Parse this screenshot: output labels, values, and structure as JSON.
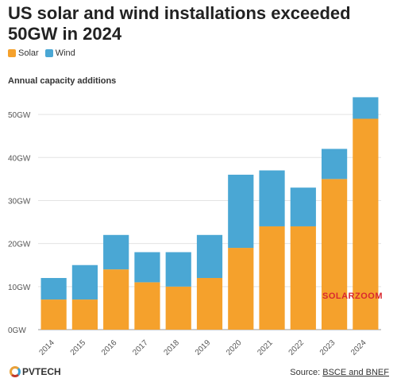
{
  "header": {
    "title": "US solar and wind installations exceeded 50GW in 2024",
    "subtitle": "Annual capacity additions"
  },
  "legend": {
    "items": [
      {
        "label": "Solar",
        "color": "#f5a12c"
      },
      {
        "label": "Wind",
        "color": "#4aa7d4"
      }
    ]
  },
  "chart_data": {
    "type": "bar",
    "stacked": true,
    "title": "US solar and wind installations exceeded 50GW in 2024",
    "subtitle": "Annual capacity additions",
    "xlabel": "",
    "ylabel": "",
    "categories": [
      "2014",
      "2015",
      "2016",
      "2017",
      "2018",
      "2019",
      "2020",
      "2021",
      "2022",
      "2023",
      "2024"
    ],
    "series": [
      {
        "name": "Solar",
        "color": "#f5a12c",
        "values": [
          7,
          7,
          14,
          11,
          10,
          12,
          19,
          24,
          24,
          35,
          49
        ]
      },
      {
        "name": "Wind",
        "color": "#4aa7d4",
        "values": [
          5,
          8,
          8,
          7,
          8,
          10,
          17,
          13,
          9,
          7,
          5
        ]
      }
    ],
    "ylim": [
      0,
      55
    ],
    "yticks": [
      0,
      10,
      20,
      30,
      40,
      50
    ],
    "ytick_labels": [
      "0GW",
      "10GW",
      "20GW",
      "30GW",
      "40GW",
      "50GW"
    ],
    "grid": true,
    "legend_position": "top-left"
  },
  "footer": {
    "brand": "PVTECH",
    "source_prefix": "Source:",
    "source_link": "BSCE and BNEF",
    "watermark": "SOLARZOOM"
  }
}
